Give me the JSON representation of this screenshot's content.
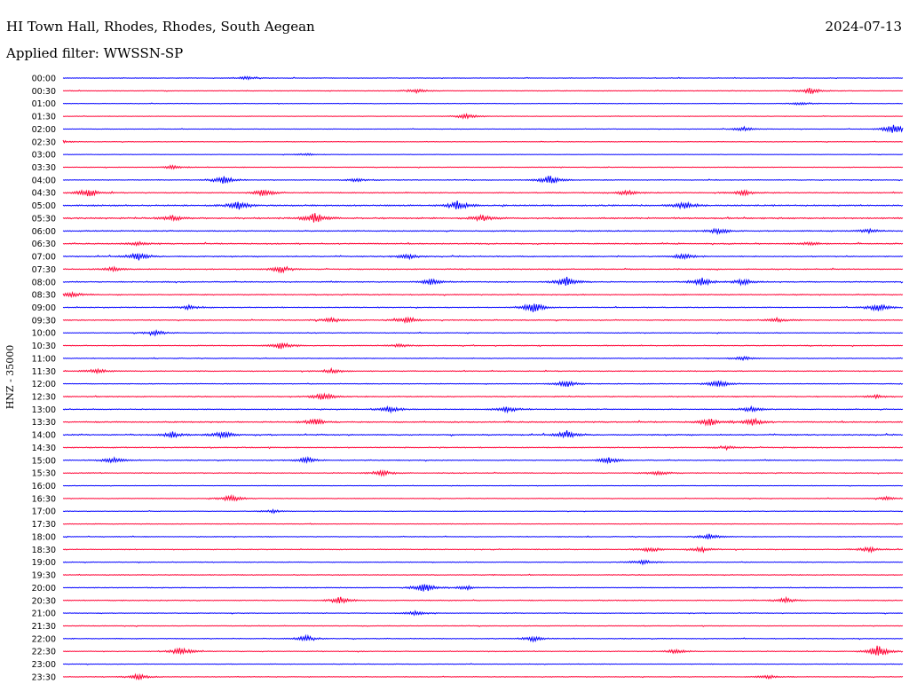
{
  "header": {
    "station": "HI Town Hall, Rhodes, Rhodes, South Aegean",
    "date": "2024-07-13",
    "filter_label": "Applied filter:",
    "filter_value": "WWSSN-SP"
  },
  "chart_data": {
    "type": "line",
    "title": "HI Town Hall, Rhodes, Rhodes, South Aegean",
    "subtitle": "Applied filter: WWSSN-SP",
    "ylabel": "HNZ - 35000",
    "xlabel": "",
    "rows": [
      "00:00",
      "00:30",
      "01:00",
      "01:30",
      "02:00",
      "02:30",
      "03:00",
      "03:30",
      "04:00",
      "04:30",
      "05:00",
      "05:30",
      "06:00",
      "06:30",
      "07:00",
      "07:30",
      "08:00",
      "08:30",
      "09:00",
      "09:30",
      "10:00",
      "10:30",
      "11:00",
      "11:30",
      "12:00",
      "12:30",
      "13:00",
      "13:30",
      "14:00",
      "14:30",
      "15:00",
      "15:30",
      "16:00",
      "16:30",
      "17:00",
      "17:30",
      "18:00",
      "18:30",
      "19:00",
      "19:30",
      "20:00",
      "20:30",
      "21:00",
      "21:30",
      "22:00",
      "22:30",
      "23:00",
      "23:30"
    ],
    "row_noise": [
      0.3,
      0.3,
      0.25,
      0.25,
      0.25,
      0.25,
      0.2,
      0.3,
      0.35,
      0.45,
      0.6,
      0.65,
      0.5,
      0.5,
      0.45,
      0.45,
      0.45,
      0.45,
      0.4,
      0.45,
      0.35,
      0.4,
      0.35,
      0.4,
      0.35,
      0.45,
      0.45,
      0.55,
      0.5,
      0.45,
      0.4,
      0.4,
      0.25,
      0.3,
      0.25,
      0.3,
      0.35,
      0.4,
      0.35,
      0.35,
      0.35,
      0.4,
      0.3,
      0.3,
      0.35,
      0.35,
      0.3,
      0.3
    ],
    "events": [
      {
        "row": 0,
        "t": 0.22,
        "a": 2.2
      },
      {
        "row": 1,
        "t": 0.42,
        "a": 2.5
      },
      {
        "row": 1,
        "t": 0.89,
        "a": 3.5
      },
      {
        "row": 2,
        "t": 0.88,
        "a": 2.0
      },
      {
        "row": 3,
        "t": 0.48,
        "a": 3.0
      },
      {
        "row": 4,
        "t": 0.81,
        "a": 2.5
      },
      {
        "row": 4,
        "t": 0.99,
        "a": 6.0
      },
      {
        "row": 5,
        "t": 0.0,
        "a": 1.5
      },
      {
        "row": 6,
        "t": 0.29,
        "a": 1.5
      },
      {
        "row": 7,
        "t": 0.13,
        "a": 2.0
      },
      {
        "row": 8,
        "t": 0.19,
        "a": 5.0
      },
      {
        "row": 8,
        "t": 0.35,
        "a": 2.0
      },
      {
        "row": 8,
        "t": 0.58,
        "a": 5.5
      },
      {
        "row": 9,
        "t": 0.03,
        "a": 5.0
      },
      {
        "row": 9,
        "t": 0.24,
        "a": 4.0
      },
      {
        "row": 9,
        "t": 0.67,
        "a": 3.0
      },
      {
        "row": 9,
        "t": 0.81,
        "a": 3.0
      },
      {
        "row": 10,
        "t": 0.21,
        "a": 5.0
      },
      {
        "row": 10,
        "t": 0.47,
        "a": 5.0
      },
      {
        "row": 10,
        "t": 0.74,
        "a": 4.0
      },
      {
        "row": 11,
        "t": 0.3,
        "a": 6.0
      },
      {
        "row": 11,
        "t": 0.5,
        "a": 3.5
      },
      {
        "row": 11,
        "t": 0.13,
        "a": 3.0
      },
      {
        "row": 12,
        "t": 0.78,
        "a": 3.0
      },
      {
        "row": 12,
        "t": 0.96,
        "a": 2.0
      },
      {
        "row": 13,
        "t": 0.09,
        "a": 2.0
      },
      {
        "row": 13,
        "t": 0.89,
        "a": 2.0
      },
      {
        "row": 14,
        "t": 0.09,
        "a": 4.5
      },
      {
        "row": 14,
        "t": 0.41,
        "a": 3.0
      },
      {
        "row": 14,
        "t": 0.74,
        "a": 3.0
      },
      {
        "row": 15,
        "t": 0.06,
        "a": 2.5
      },
      {
        "row": 15,
        "t": 0.26,
        "a": 4.0
      },
      {
        "row": 16,
        "t": 0.44,
        "a": 4.0
      },
      {
        "row": 16,
        "t": 0.6,
        "a": 6.0
      },
      {
        "row": 16,
        "t": 0.76,
        "a": 5.0
      },
      {
        "row": 16,
        "t": 0.81,
        "a": 3.5
      },
      {
        "row": 17,
        "t": 0.01,
        "a": 3.0
      },
      {
        "row": 18,
        "t": 0.15,
        "a": 2.5
      },
      {
        "row": 18,
        "t": 0.56,
        "a": 6.0
      },
      {
        "row": 18,
        "t": 0.97,
        "a": 5.0
      },
      {
        "row": 19,
        "t": 0.32,
        "a": 2.5
      },
      {
        "row": 19,
        "t": 0.41,
        "a": 4.0
      },
      {
        "row": 19,
        "t": 0.85,
        "a": 2.5
      },
      {
        "row": 20,
        "t": 0.11,
        "a": 3.0
      },
      {
        "row": 21,
        "t": 0.26,
        "a": 4.0
      },
      {
        "row": 21,
        "t": 0.4,
        "a": 2.0
      },
      {
        "row": 22,
        "t": 0.81,
        "a": 2.0
      },
      {
        "row": 23,
        "t": 0.04,
        "a": 2.5
      },
      {
        "row": 23,
        "t": 0.32,
        "a": 2.5
      },
      {
        "row": 24,
        "t": 0.6,
        "a": 4.0
      },
      {
        "row": 24,
        "t": 0.78,
        "a": 4.5
      },
      {
        "row": 25,
        "t": 0.31,
        "a": 4.5
      },
      {
        "row": 25,
        "t": 0.97,
        "a": 2.0
      },
      {
        "row": 26,
        "t": 0.39,
        "a": 3.5
      },
      {
        "row": 26,
        "t": 0.53,
        "a": 3.5
      },
      {
        "row": 26,
        "t": 0.82,
        "a": 3.0
      },
      {
        "row": 27,
        "t": 0.3,
        "a": 3.5
      },
      {
        "row": 27,
        "t": 0.77,
        "a": 4.0
      },
      {
        "row": 27,
        "t": 0.82,
        "a": 4.5
      },
      {
        "row": 28,
        "t": 0.13,
        "a": 3.5
      },
      {
        "row": 28,
        "t": 0.19,
        "a": 4.0
      },
      {
        "row": 28,
        "t": 0.6,
        "a": 4.5
      },
      {
        "row": 29,
        "t": 0.79,
        "a": 2.0
      },
      {
        "row": 30,
        "t": 0.06,
        "a": 3.5
      },
      {
        "row": 30,
        "t": 0.29,
        "a": 3.0
      },
      {
        "row": 30,
        "t": 0.65,
        "a": 3.0
      },
      {
        "row": 31,
        "t": 0.38,
        "a": 3.0
      },
      {
        "row": 31,
        "t": 0.71,
        "a": 2.5
      },
      {
        "row": 33,
        "t": 0.2,
        "a": 4.0
      },
      {
        "row": 33,
        "t": 0.98,
        "a": 2.0
      },
      {
        "row": 34,
        "t": 0.25,
        "a": 2.0
      },
      {
        "row": 36,
        "t": 0.77,
        "a": 3.5
      },
      {
        "row": 37,
        "t": 0.7,
        "a": 3.0
      },
      {
        "row": 37,
        "t": 0.76,
        "a": 3.0
      },
      {
        "row": 37,
        "t": 0.96,
        "a": 3.0
      },
      {
        "row": 38,
        "t": 0.69,
        "a": 3.0
      },
      {
        "row": 40,
        "t": 0.43,
        "a": 6.0
      },
      {
        "row": 40,
        "t": 0.48,
        "a": 2.5
      },
      {
        "row": 41,
        "t": 0.33,
        "a": 4.0
      },
      {
        "row": 41,
        "t": 0.86,
        "a": 3.0
      },
      {
        "row": 42,
        "t": 0.42,
        "a": 2.5
      },
      {
        "row": 44,
        "t": 0.29,
        "a": 3.5
      },
      {
        "row": 44,
        "t": 0.56,
        "a": 3.0
      },
      {
        "row": 45,
        "t": 0.14,
        "a": 4.5
      },
      {
        "row": 45,
        "t": 0.73,
        "a": 2.5
      },
      {
        "row": 45,
        "t": 0.97,
        "a": 7.0
      },
      {
        "row": 47,
        "t": 0.09,
        "a": 3.5
      },
      {
        "row": 47,
        "t": 0.84,
        "a": 2.0
      }
    ],
    "colors": [
      "#0000ff",
      "#ff0033"
    ],
    "grid": false
  }
}
